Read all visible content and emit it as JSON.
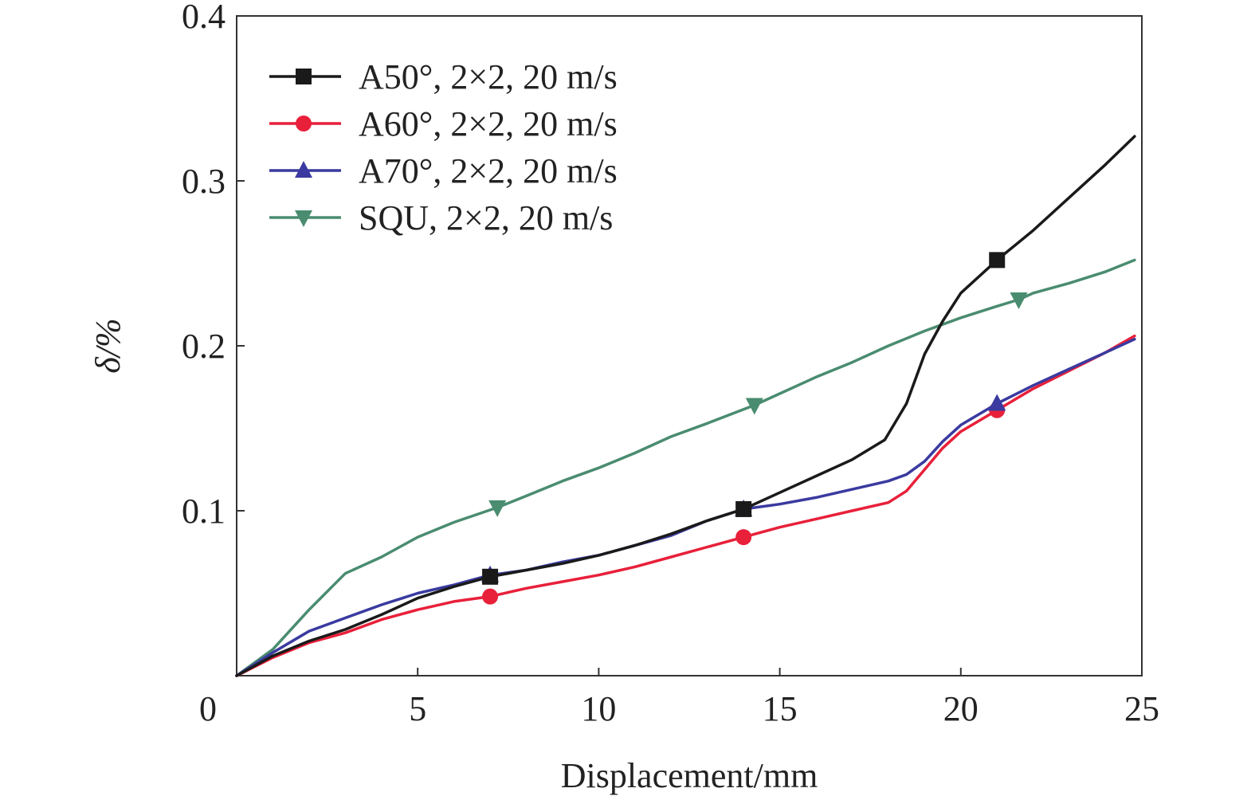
{
  "chart_data": {
    "type": "line",
    "xlabel": "Displacement/mm",
    "ylabel": "δ/%",
    "xlim": [
      0,
      25
    ],
    "ylim": [
      0,
      0.4
    ],
    "xticks": [
      0,
      5,
      10,
      15,
      20,
      25
    ],
    "xtick_labels": [
      "0",
      "5",
      "10",
      "15",
      "20",
      "25"
    ],
    "yticks": [
      0.1,
      0.2,
      0.3,
      0.4
    ],
    "ytick_labels": [
      "0.1",
      "0.2",
      "0.3",
      "0.4"
    ],
    "grid": false,
    "legend_position": "top-left",
    "series": [
      {
        "name": "A50°, 2×2, 20 m/s",
        "color": "#1a1a1a",
        "marker": "square",
        "x": [
          0,
          1,
          2,
          3,
          4,
          5,
          6,
          7,
          8,
          9,
          10,
          11,
          12,
          13,
          14,
          15,
          16,
          17,
          17.9,
          18.5,
          19,
          19.5,
          20,
          21,
          22,
          23,
          24,
          24.8
        ],
        "y": [
          0,
          0.012,
          0.021,
          0.028,
          0.037,
          0.047,
          0.054,
          0.06,
          0.064,
          0.068,
          0.073,
          0.079,
          0.086,
          0.094,
          0.101,
          0.111,
          0.121,
          0.131,
          0.143,
          0.165,
          0.195,
          0.215,
          0.232,
          0.252,
          0.27,
          0.29,
          0.31,
          0.327
        ],
        "marker_x": [
          7,
          14,
          21
        ],
        "marker_y": [
          0.06,
          0.101,
          0.252
        ]
      },
      {
        "name": "A60°, 2×2, 20 m/s",
        "color": "#e8203a",
        "marker": "circle",
        "x": [
          0,
          1,
          2,
          3,
          4,
          5,
          6,
          7,
          8,
          9,
          10,
          11,
          12,
          13,
          14,
          15,
          16,
          17,
          18,
          18.5,
          19,
          19.5,
          20,
          21,
          22,
          23,
          24,
          24.8
        ],
        "y": [
          0,
          0.011,
          0.02,
          0.026,
          0.034,
          0.04,
          0.045,
          0.048,
          0.053,
          0.057,
          0.061,
          0.066,
          0.072,
          0.078,
          0.084,
          0.09,
          0.095,
          0.1,
          0.105,
          0.112,
          0.125,
          0.138,
          0.148,
          0.161,
          0.174,
          0.185,
          0.196,
          0.206
        ],
        "marker_x": [
          7,
          14,
          21
        ],
        "marker_y": [
          0.048,
          0.084,
          0.161
        ]
      },
      {
        "name": "A70°, 2×2, 20 m/s",
        "color": "#3a3aa0",
        "marker": "triangle-up",
        "x": [
          0,
          1,
          2,
          3,
          4,
          5,
          6,
          7,
          8,
          9,
          10,
          11,
          12,
          13,
          14,
          15,
          16,
          17,
          18,
          18.5,
          19,
          19.5,
          20,
          21,
          22,
          23,
          24,
          24.8
        ],
        "y": [
          0,
          0.014,
          0.027,
          0.035,
          0.043,
          0.05,
          0.055,
          0.061,
          0.064,
          0.069,
          0.073,
          0.079,
          0.085,
          0.094,
          0.101,
          0.104,
          0.108,
          0.113,
          0.118,
          0.122,
          0.13,
          0.142,
          0.152,
          0.165,
          0.176,
          0.186,
          0.196,
          0.204
        ],
        "marker_x": [
          7,
          14,
          21
        ],
        "marker_y": [
          0.061,
          0.101,
          0.165
        ]
      },
      {
        "name": "SQU, 2×2, 20 m/s",
        "color": "#4a8c70",
        "marker": "triangle-down",
        "x": [
          0,
          1,
          2,
          3,
          4,
          5,
          6,
          7.2,
          8,
          9,
          10,
          11,
          12,
          13,
          14.3,
          15,
          16,
          17,
          18,
          19,
          20,
          21,
          21.6,
          22,
          23,
          24,
          24.8
        ],
        "y": [
          0,
          0.016,
          0.04,
          0.062,
          0.072,
          0.084,
          0.093,
          0.102,
          0.109,
          0.118,
          0.126,
          0.135,
          0.145,
          0.153,
          0.164,
          0.171,
          0.181,
          0.19,
          0.2,
          0.209,
          0.217,
          0.224,
          0.228,
          0.232,
          0.238,
          0.245,
          0.252
        ],
        "marker_x": [
          7.2,
          14.3,
          21.6
        ],
        "marker_y": [
          0.102,
          0.164,
          0.228
        ]
      }
    ]
  }
}
